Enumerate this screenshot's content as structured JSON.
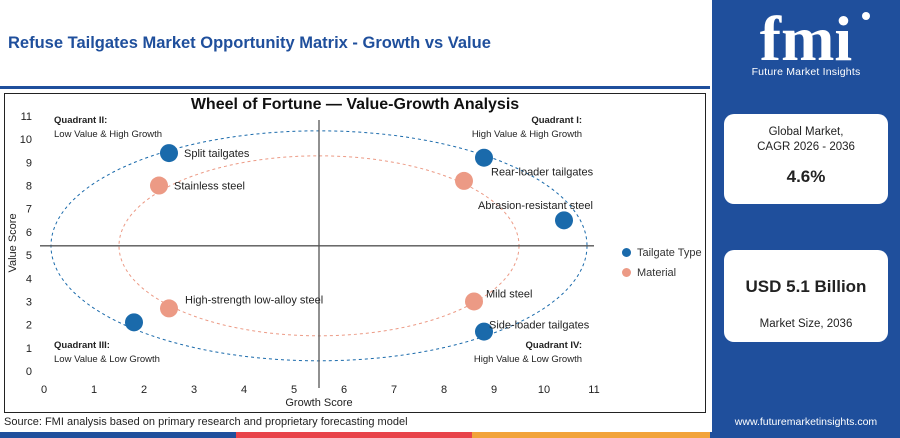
{
  "header": {
    "title": "Refuse Tailgates Market Opportunity Matrix - Growth vs Value"
  },
  "chart_data": {
    "type": "scatter",
    "title": "Wheel of Fortune — Value-Growth Analysis",
    "xlabel": "Growth Score",
    "ylabel": "Value Score",
    "xlim": [
      0,
      11
    ],
    "ylim": [
      0,
      11
    ],
    "xticks": [
      0,
      1,
      2,
      3,
      4,
      5,
      6,
      7,
      8,
      9,
      10,
      11
    ],
    "yticks": [
      0,
      1,
      2,
      3,
      4,
      5,
      6,
      7,
      8,
      9,
      10,
      11
    ],
    "divider": {
      "x": 5.5,
      "y": 5.4
    },
    "series": [
      {
        "name": "Tailgate Type",
        "color": "#1a6aab",
        "points": [
          {
            "label": "Split tailgates",
            "x": 2.5,
            "y": 9.4
          },
          {
            "label": "Rear-loader tailgates",
            "x": 8.8,
            "y": 9.2
          },
          {
            "label": "",
            "x": 10.4,
            "y": 6.5
          },
          {
            "label": "",
            "x": 1.8,
            "y": 2.1
          },
          {
            "label": "Side-loader tailgates",
            "x": 8.8,
            "y": 1.7
          }
        ]
      },
      {
        "name": "Material",
        "color": "#ec9a85",
        "points": [
          {
            "label": "Stainless steel",
            "x": 2.3,
            "y": 8.0
          },
          {
            "label": "Abrasion-resistant steel",
            "x": 8.4,
            "y": 8.2
          },
          {
            "label": "High-strength low-alloy steel",
            "x": 2.5,
            "y": 2.7
          },
          {
            "label": "Mild steel",
            "x": 8.6,
            "y": 3.0
          }
        ]
      }
    ],
    "quadrants": [
      {
        "title": "Quadrant II:",
        "subtitle": "Low Value & High Growth"
      },
      {
        "title": "Quadrant I:",
        "subtitle": "High Value & High Growth"
      },
      {
        "title": "Quadrant III:",
        "subtitle": "Low Value & Low Growth"
      },
      {
        "title": "Quadrant IV:",
        "subtitle": "High Value & Low Growth"
      }
    ],
    "legend_position": "right"
  },
  "source": "Source: FMI analysis based on primary research and proprietary forecasting model",
  "sidebar": {
    "logo_text": "fmi",
    "logo_subtitle": "Future Market Insights",
    "cagr_label_1": "Global Market,",
    "cagr_label_2": "CAGR 2026 - 2036",
    "cagr_value": "4.6%",
    "size_value": "USD 5.1 Billion",
    "size_label": "Market Size, 2036",
    "website": "www.futuremarketinsights.com"
  },
  "colors": {
    "brand": "#1f4f9c",
    "tailgate": "#1a6aab",
    "material": "#ec9a85",
    "bottom_bar": [
      "#1f4f9c",
      "#e8434a",
      "#f2a33a",
      "#1f4f9c"
    ]
  }
}
